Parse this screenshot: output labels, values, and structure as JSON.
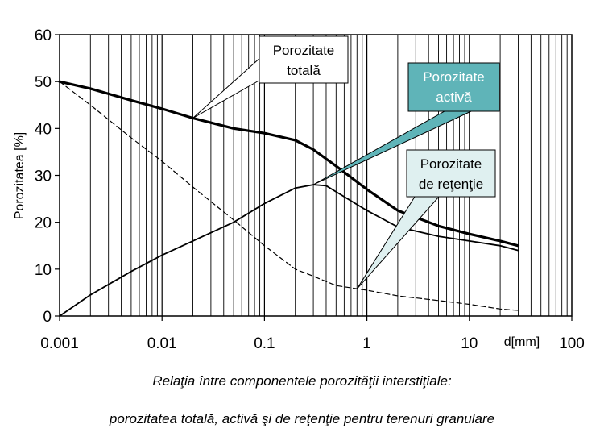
{
  "chart_data": {
    "type": "line",
    "ylabel": "Porozitatea [%]",
    "xlabel": "d[mm]",
    "x_scale": "log",
    "xlim": [
      0.001,
      100
    ],
    "ylim": [
      0,
      60
    ],
    "y_ticks": [
      0,
      10,
      20,
      30,
      40,
      50,
      60
    ],
    "x_ticks": [
      0.001,
      0.01,
      0.1,
      1,
      10,
      100
    ],
    "x_tick_labels": [
      "0.001",
      "0.01",
      "0.1",
      "1",
      "10",
      "100"
    ],
    "grid": "vertical-log",
    "series": [
      {
        "key": "totala",
        "style": "thick",
        "x": [
          0.001,
          0.002,
          0.005,
          0.01,
          0.02,
          0.05,
          0.1,
          0.2,
          0.3,
          0.5,
          1,
          2,
          5,
          10,
          20,
          30
        ],
        "y": [
          50,
          48.5,
          46,
          44.2,
          42.2,
          40,
          39,
          37.5,
          35.5,
          32,
          27,
          22.5,
          19.2,
          17.5,
          16,
          15
        ]
      },
      {
        "key": "activa",
        "style": "thin",
        "x": [
          0.001,
          0.002,
          0.005,
          0.01,
          0.02,
          0.05,
          0.1,
          0.2,
          0.3,
          0.4,
          0.5,
          1,
          2,
          5,
          10,
          20,
          30
        ],
        "y": [
          0,
          4.5,
          9.5,
          13,
          16,
          20,
          24,
          27.3,
          28,
          27.8,
          26.5,
          22.5,
          19,
          17,
          16,
          15,
          14
        ]
      },
      {
        "key": "retentie",
        "style": "dashed",
        "x": [
          0.001,
          0.002,
          0.005,
          0.01,
          0.02,
          0.05,
          0.1,
          0.2,
          0.3,
          0.5,
          1,
          2,
          5,
          10,
          20,
          30
        ],
        "y": [
          50,
          45,
          38,
          33,
          27.5,
          20.5,
          15,
          10,
          8.5,
          6.5,
          5.5,
          4.3,
          3.3,
          2.5,
          1.5,
          1.2
        ]
      }
    ],
    "annotations": [
      {
        "text": [
          "Porozitate",
          "totală"
        ],
        "fill": "#ffffff",
        "text_color": "#000000",
        "target": [
          0.02,
          42.2
        ]
      },
      {
        "text": [
          "Porozitate",
          "activă"
        ],
        "fill": "#5fb4b8",
        "text_color": "#ffffff",
        "target": [
          0.3,
          28
        ]
      },
      {
        "text": [
          "Porozitate",
          "de reţenţie"
        ],
        "fill": "#dff0f0",
        "text_color": "#000000",
        "target": [
          0.8,
          5.8
        ]
      }
    ]
  },
  "caption": {
    "line1": "Relaţia între componentele porozităţii interstiţiale:",
    "line2": "porozitatea totală, activă şi de reţenţie pentru terenuri granulare"
  }
}
